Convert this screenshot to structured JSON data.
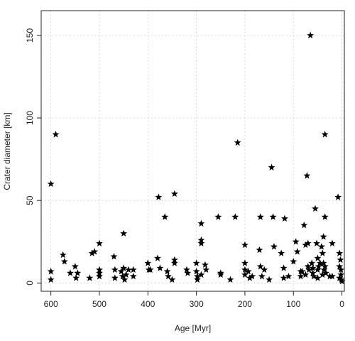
{
  "chart_data": {
    "type": "scatter",
    "title": "",
    "xlabel": "Age [Myr]",
    "ylabel": "Crater diameter [km]",
    "xlim": [
      620,
      -5
    ],
    "ylim": [
      -5,
      165
    ],
    "x_ticks": [
      600,
      500,
      400,
      300,
      200,
      100,
      0
    ],
    "y_ticks": [
      0,
      50,
      100,
      150
    ],
    "x_tick_labels": [
      "600",
      "500",
      "400",
      "300",
      "200",
      "100",
      "0"
    ],
    "y_tick_labels": [
      "0",
      "50",
      "100",
      "150"
    ],
    "grid": true,
    "marker": "star",
    "marker_color": "#000000",
    "points": [
      {
        "x": 600,
        "y": 60
      },
      {
        "x": 600,
        "y": 7
      },
      {
        "x": 600,
        "y": 2
      },
      {
        "x": 590,
        "y": 90
      },
      {
        "x": 575,
        "y": 17
      },
      {
        "x": 572,
        "y": 13
      },
      {
        "x": 560,
        "y": 6
      },
      {
        "x": 550,
        "y": 10
      },
      {
        "x": 548,
        "y": 3
      },
      {
        "x": 545,
        "y": 6
      },
      {
        "x": 520,
        "y": 3
      },
      {
        "x": 515,
        "y": 18
      },
      {
        "x": 510,
        "y": 19
      },
      {
        "x": 500,
        "y": 24
      },
      {
        "x": 500,
        "y": 8
      },
      {
        "x": 500,
        "y": 6
      },
      {
        "x": 500,
        "y": 4
      },
      {
        "x": 470,
        "y": 16
      },
      {
        "x": 468,
        "y": 8
      },
      {
        "x": 468,
        "y": 3
      },
      {
        "x": 455,
        "y": 7
      },
      {
        "x": 452,
        "y": 4
      },
      {
        "x": 450,
        "y": 30
      },
      {
        "x": 450,
        "y": 9
      },
      {
        "x": 448,
        "y": 2
      },
      {
        "x": 445,
        "y": 5
      },
      {
        "x": 440,
        "y": 8
      },
      {
        "x": 430,
        "y": 8
      },
      {
        "x": 430,
        "y": 4
      },
      {
        "x": 400,
        "y": 12
      },
      {
        "x": 398,
        "y": 8
      },
      {
        "x": 395,
        "y": 8
      },
      {
        "x": 380,
        "y": 15
      },
      {
        "x": 378,
        "y": 52
      },
      {
        "x": 375,
        "y": 9
      },
      {
        "x": 365,
        "y": 40
      },
      {
        "x": 360,
        "y": 7
      },
      {
        "x": 358,
        "y": 4
      },
      {
        "x": 350,
        "y": 2
      },
      {
        "x": 345,
        "y": 54
      },
      {
        "x": 345,
        "y": 14
      },
      {
        "x": 345,
        "y": 12
      },
      {
        "x": 320,
        "y": 8
      },
      {
        "x": 318,
        "y": 6
      },
      {
        "x": 300,
        "y": 12
      },
      {
        "x": 300,
        "y": 7
      },
      {
        "x": 298,
        "y": 4
      },
      {
        "x": 298,
        "y": 2
      },
      {
        "x": 290,
        "y": 36
      },
      {
        "x": 290,
        "y": 26
      },
      {
        "x": 290,
        "y": 24
      },
      {
        "x": 290,
        "y": 5
      },
      {
        "x": 282,
        "y": 11
      },
      {
        "x": 280,
        "y": 8
      },
      {
        "x": 255,
        "y": 40
      },
      {
        "x": 250,
        "y": 6
      },
      {
        "x": 250,
        "y": 5
      },
      {
        "x": 230,
        "y": 2
      },
      {
        "x": 220,
        "y": 40
      },
      {
        "x": 215,
        "y": 85
      },
      {
        "x": 200,
        "y": 23
      },
      {
        "x": 200,
        "y": 12
      },
      {
        "x": 200,
        "y": 8
      },
      {
        "x": 200,
        "y": 5
      },
      {
        "x": 193,
        "y": 7
      },
      {
        "x": 190,
        "y": 3
      },
      {
        "x": 185,
        "y": 4
      },
      {
        "x": 170,
        "y": 20
      },
      {
        "x": 168,
        "y": 10
      },
      {
        "x": 168,
        "y": 40
      },
      {
        "x": 165,
        "y": 4
      },
      {
        "x": 160,
        "y": 8
      },
      {
        "x": 150,
        "y": 2
      },
      {
        "x": 145,
        "y": 70
      },
      {
        "x": 142,
        "y": 40
      },
      {
        "x": 140,
        "y": 22
      },
      {
        "x": 125,
        "y": 18
      },
      {
        "x": 120,
        "y": 9
      },
      {
        "x": 120,
        "y": 3
      },
      {
        "x": 118,
        "y": 39
      },
      {
        "x": 110,
        "y": 4
      },
      {
        "x": 100,
        "y": 13
      },
      {
        "x": 95,
        "y": 25
      },
      {
        "x": 92,
        "y": 19
      },
      {
        "x": 85,
        "y": 7
      },
      {
        "x": 85,
        "y": 4
      },
      {
        "x": 82,
        "y": 7
      },
      {
        "x": 78,
        "y": 35
      },
      {
        "x": 75,
        "y": 23
      },
      {
        "x": 75,
        "y": 5
      },
      {
        "x": 72,
        "y": 65
      },
      {
        "x": 70,
        "y": 24
      },
      {
        "x": 70,
        "y": 10
      },
      {
        "x": 68,
        "y": 8
      },
      {
        "x": 65,
        "y": 150
      },
      {
        "x": 62,
        "y": 12
      },
      {
        "x": 60,
        "y": 6
      },
      {
        "x": 60,
        "y": 9
      },
      {
        "x": 58,
        "y": 4
      },
      {
        "x": 55,
        "y": 45
      },
      {
        "x": 52,
        "y": 24
      },
      {
        "x": 50,
        "y": 15
      },
      {
        "x": 50,
        "y": 8
      },
      {
        "x": 50,
        "y": 3
      },
      {
        "x": 48,
        "y": 10
      },
      {
        "x": 45,
        "y": 12
      },
      {
        "x": 42,
        "y": 22
      },
      {
        "x": 40,
        "y": 18
      },
      {
        "x": 40,
        "y": 5
      },
      {
        "x": 38,
        "y": 28
      },
      {
        "x": 38,
        "y": 12
      },
      {
        "x": 37,
        "y": 8
      },
      {
        "x": 35,
        "y": 90
      },
      {
        "x": 35,
        "y": 40
      },
      {
        "x": 35,
        "y": 10
      },
      {
        "x": 33,
        "y": 6
      },
      {
        "x": 25,
        "y": 4
      },
      {
        "x": 20,
        "y": 24
      },
      {
        "x": 20,
        "y": 4
      },
      {
        "x": 8,
        "y": 52
      },
      {
        "x": 5,
        "y": 18
      },
      {
        "x": 5,
        "y": 10
      },
      {
        "x": 5,
        "y": 3
      },
      {
        "x": 3,
        "y": 14
      },
      {
        "x": 2,
        "y": 8
      },
      {
        "x": 2,
        "y": 5
      },
      {
        "x": 1,
        "y": 2
      },
      {
        "x": 0,
        "y": 1
      }
    ]
  }
}
